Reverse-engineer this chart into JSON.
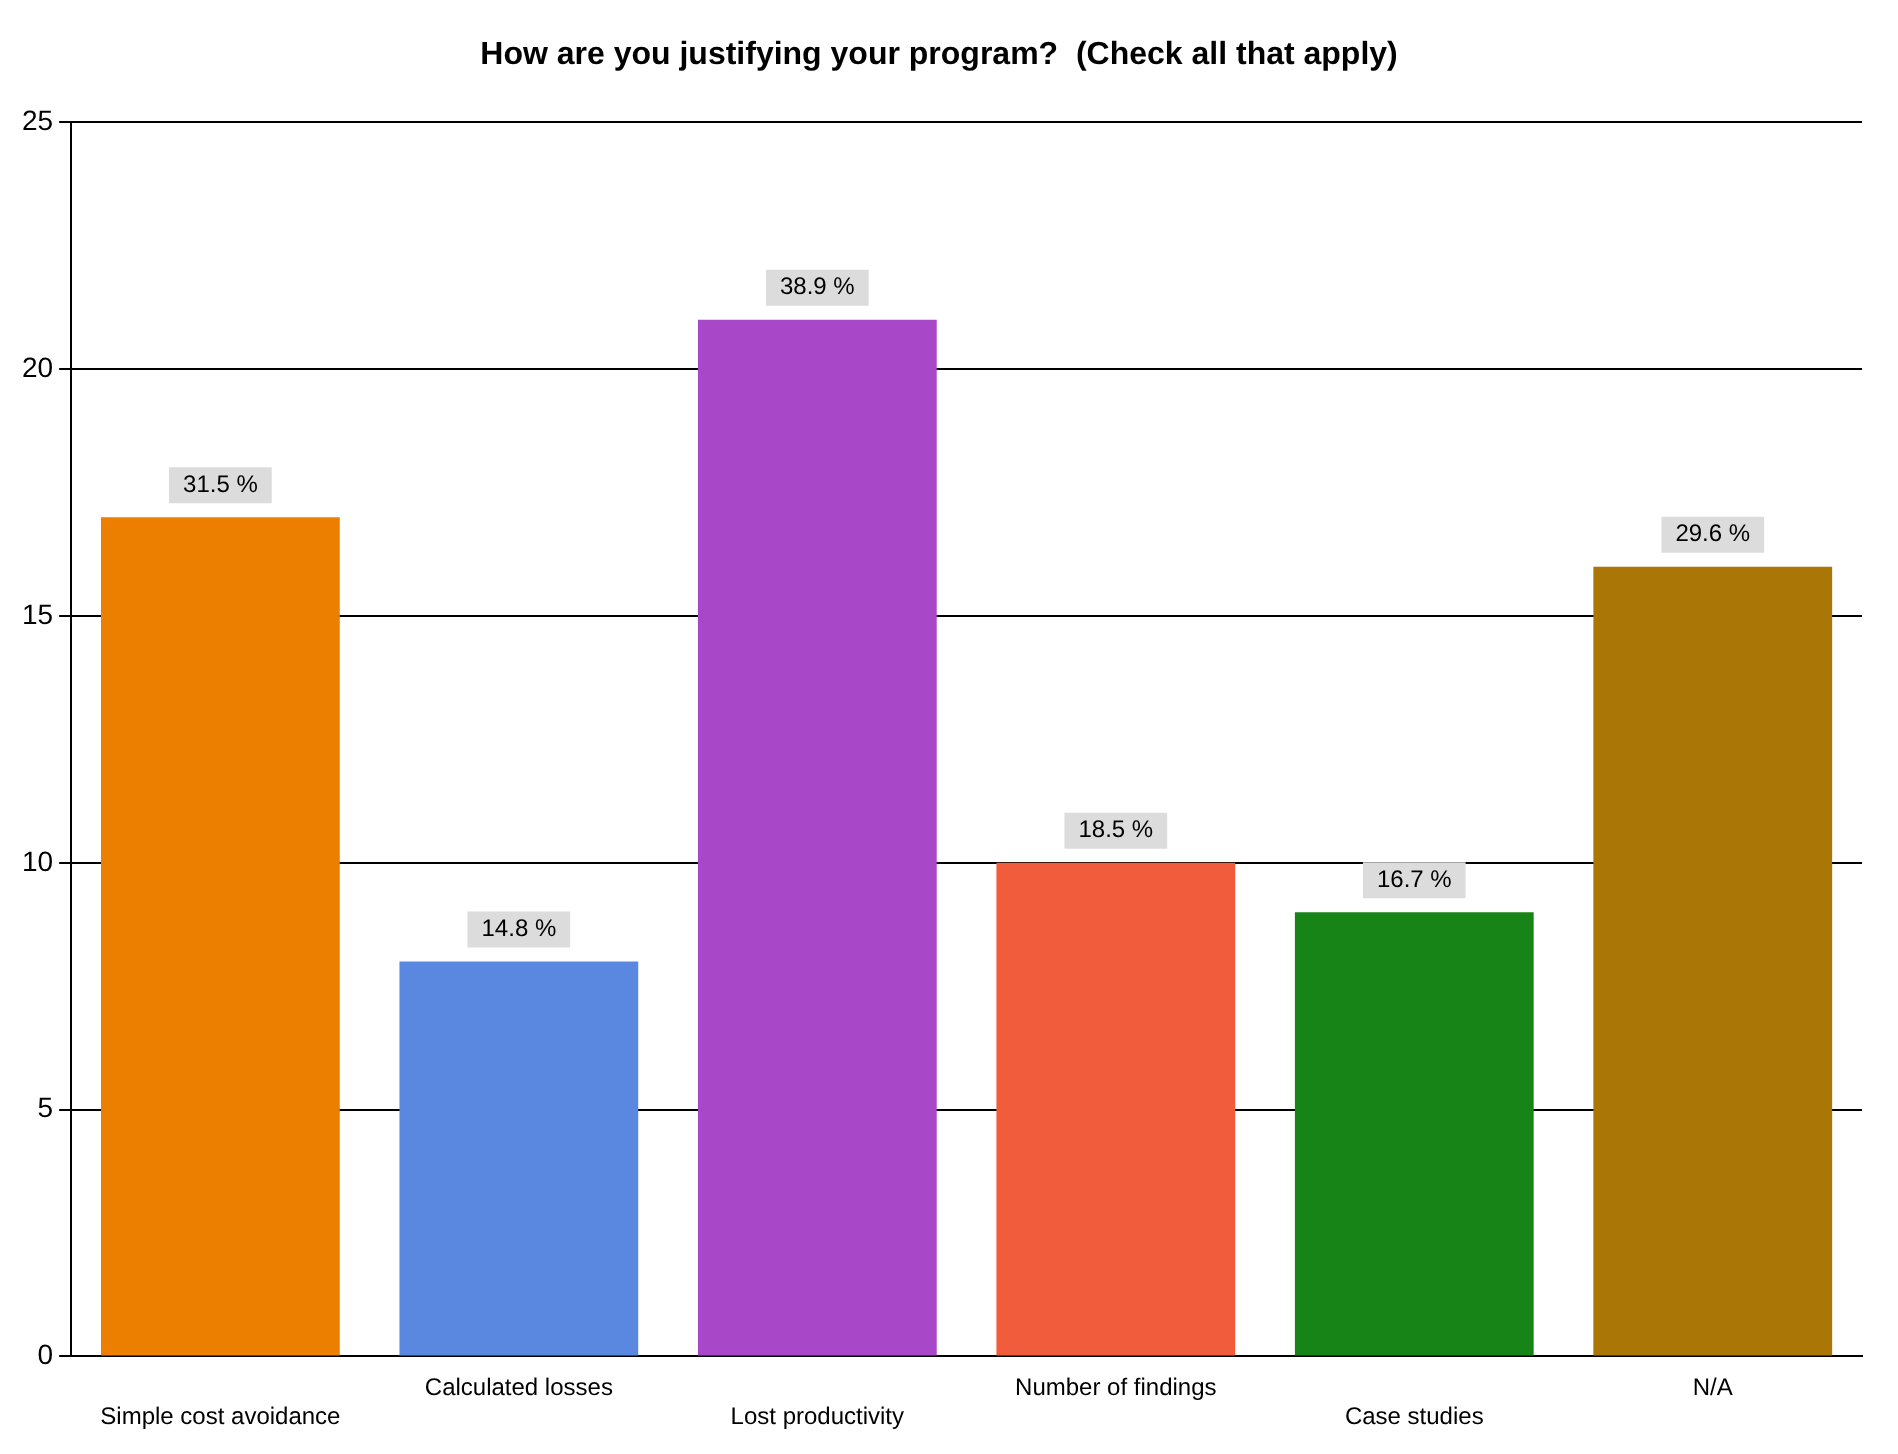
{
  "chart_data": {
    "type": "bar",
    "title": "How are you justifying your program?  (Check all that apply)",
    "categories": [
      "Simple cost avoidance",
      "Calculated losses",
      "Lost productivity",
      "Number of findings",
      "Case studies",
      "N/A"
    ],
    "values": [
      17,
      8,
      21,
      10,
      9,
      16
    ],
    "colors": [
      "#ec7f00",
      "#5a88e0",
      "#a848c8",
      "#f05c3c",
      "#168416",
      "#aa7606"
    ],
    "annotations": [
      {
        "text": "31.5 %",
        "x": "Simple cost avoidance",
        "y": 17
      },
      {
        "text": "14.8 %",
        "x": "Calculated losses",
        "y": 8
      },
      {
        "text": "38.9 %",
        "x": "Lost productivity",
        "y": 21
      },
      {
        "text": "18.5 %",
        "x": "Number of findings",
        "y": 10
      },
      {
        "text": "16.7 %",
        "x": "Case studies",
        "y": 9
      },
      {
        "text": "29.6 %",
        "x": "N/A",
        "y": 16
      }
    ],
    "ylim": [
      0,
      25
    ],
    "yticks": [
      0,
      5,
      10,
      15,
      20,
      25
    ],
    "grid": "y",
    "legend": false
  }
}
